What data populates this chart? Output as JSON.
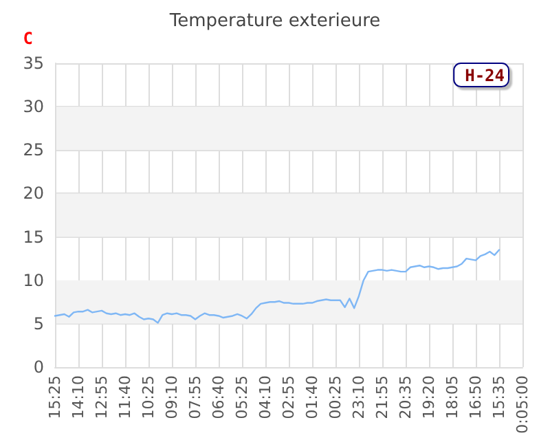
{
  "chart_data": {
    "type": "line",
    "title": "Temperature exterieure",
    "ylabel": "C",
    "categories": [
      "15:25",
      null,
      null,
      null,
      null,
      "14:10",
      null,
      null,
      null,
      null,
      "12:55",
      null,
      null,
      null,
      null,
      "11:40",
      null,
      null,
      null,
      null,
      "10:25",
      null,
      null,
      null,
      null,
      "09:10",
      null,
      null,
      null,
      null,
      "07:55",
      null,
      null,
      null,
      null,
      "06:40",
      null,
      null,
      null,
      null,
      "05:25",
      null,
      null,
      null,
      null,
      "04:10",
      null,
      null,
      null,
      null,
      "02:55",
      null,
      null,
      null,
      null,
      "01:40",
      null,
      null,
      null,
      null,
      "00:25",
      null,
      null,
      null,
      null,
      "23:10",
      null,
      null,
      null,
      null,
      "21:55",
      null,
      null,
      null,
      null,
      "20:35",
      null,
      null,
      null,
      null,
      "19:20",
      null,
      null,
      null,
      null,
      "18:05",
      null,
      null,
      null,
      null,
      "16:50",
      null,
      null,
      null,
      null,
      "15:35",
      null,
      null,
      null,
      null,
      "0:05:00"
    ],
    "ylim": [
      0,
      35
    ],
    "yticks": [
      0,
      5,
      10,
      15,
      20,
      25,
      30,
      35
    ],
    "grid": true,
    "legend": "top right",
    "marker": "none",
    "line_style": "solid",
    "bands": [
      {
        "axis": "y",
        "from": 5,
        "to": 10,
        "color": "#f3f3f3"
      },
      {
        "axis": "y",
        "from": 15,
        "to": 20,
        "color": "#f3f3f3"
      },
      {
        "axis": "y",
        "from": 25,
        "to": 30,
        "color": "#f3f3f3"
      }
    ],
    "series": [
      {
        "name": "H-24",
        "color": "#7fb7f5",
        "values": [
          5.9,
          6.0,
          6.1,
          5.8,
          6.3,
          6.4,
          6.4,
          6.6,
          6.3,
          6.4,
          6.5,
          6.2,
          6.1,
          6.2,
          6.0,
          6.1,
          6.0,
          6.2,
          5.8,
          5.5,
          5.6,
          5.5,
          5.1,
          6.0,
          6.2,
          6.1,
          6.2,
          6.0,
          6.0,
          5.9,
          5.5,
          5.9,
          6.2,
          6.0,
          6.0,
          5.9,
          5.7,
          5.8,
          5.9,
          6.1,
          5.9,
          5.6,
          6.1,
          6.8,
          7.3,
          7.4,
          7.5,
          7.5,
          7.6,
          7.4,
          7.4,
          7.3,
          7.3,
          7.3,
          7.4,
          7.4,
          7.6,
          7.7,
          7.8,
          7.7,
          7.7,
          7.7,
          6.9,
          7.9,
          6.8,
          8.2,
          10.0,
          11.0,
          11.1,
          11.2,
          11.2,
          11.1,
          11.2,
          11.1,
          11.0,
          11.0,
          11.5,
          11.6,
          11.7,
          11.5,
          11.6,
          11.5,
          11.3,
          11.4,
          11.4,
          11.5,
          11.6,
          11.9,
          12.5,
          12.4,
          12.3,
          12.8,
          13.0,
          13.3,
          12.9,
          13.5,
          null,
          null,
          null,
          null,
          null
        ]
      }
    ]
  }
}
